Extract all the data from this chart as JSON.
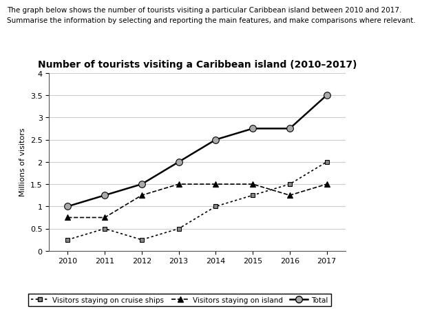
{
  "title": "Number of tourists visiting a Caribbean island (2010–2017)",
  "subtitle_line1": "The graph below shows the number of tourists visiting a particular Caribbean island between 2010 and 2017.",
  "subtitle_line2": "Summarise the information by selecting and reporting the main features, and make comparisons where relevant.",
  "ylabel": "Millions of visitors",
  "years": [
    2010,
    2011,
    2012,
    2013,
    2014,
    2015,
    2016,
    2017
  ],
  "cruise_ships": [
    0.25,
    0.5,
    0.25,
    0.5,
    1.0,
    1.25,
    1.5,
    2.0
  ],
  "on_island": [
    0.75,
    0.75,
    1.25,
    1.5,
    1.5,
    1.5,
    1.25,
    1.5
  ],
  "total": [
    1.0,
    1.25,
    1.5,
    2.0,
    2.5,
    2.75,
    2.75,
    3.5
  ],
  "ylim": [
    0,
    4
  ],
  "yticks": [
    0,
    0.5,
    1.0,
    1.5,
    2.0,
    2.5,
    3.0,
    3.5,
    4.0
  ],
  "ytick_labels": [
    "0",
    "0.5",
    "1",
    "1.5",
    "2",
    "2.5",
    "3",
    "3.5",
    "4"
  ],
  "background_color": "#ffffff",
  "grid_color": "#cccccc",
  "legend_labels": [
    "Visitors staying on cruise ships",
    "Visitors staying on island",
    "Total"
  ],
  "subtitle_fontsize": 7.5,
  "title_fontsize": 10,
  "tick_fontsize": 8,
  "ylabel_fontsize": 8
}
